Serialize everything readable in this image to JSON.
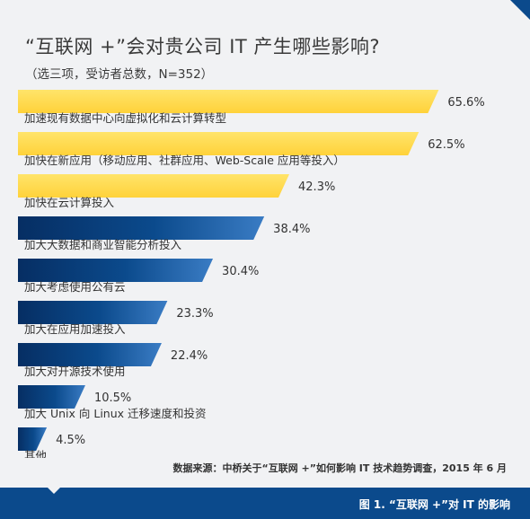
{
  "header": {
    "title": "“互联网 +”会对贵公司 IT 产生哪些影响?",
    "subtitle": "（选三项，受访者总数，N=352）"
  },
  "footer": {
    "source": "数据来源：中桥关于“互联网 +”如何影响 IT 技术趋势调查，2015 年 6 月",
    "caption": "图 1. “互联网 +”对 IT 的影响"
  },
  "colors": {
    "highlight": "#ffd23a",
    "base": "#0b4a8c",
    "background": "#f1f2f4"
  },
  "chart_data": {
    "type": "bar",
    "orientation": "horizontal",
    "title": "“互联网 +”会对贵公司 IT 产生哪些影响?",
    "subtitle": "（选三项，受访者总数，N=352）",
    "unit": "%",
    "categories": [
      "加速现有数据中心向虚拟化和云计算转型",
      "加快在新应用（移动应用、社群应用、Web-Scale 应用等投入）",
      "加快在云计算投入",
      "加大大数据和商业智能分析投入",
      "加大考虑使用公有云",
      "加大在应用加速投入",
      "加大对开源技术使用",
      "加大 Unix 向 Linux 迁移速度和投资",
      "其他"
    ],
    "values": [
      65.6,
      62.5,
      42.3,
      38.4,
      30.4,
      23.3,
      22.4,
      10.5,
      4.5
    ],
    "value_labels": [
      "65.6%",
      "62.5%",
      "42.3%",
      "38.4%",
      "30.4%",
      "23.3%",
      "22.4%",
      "10.5%",
      "4.5%"
    ],
    "highlighted_count": 3,
    "xlim": [
      0,
      66
    ],
    "grid": false,
    "legend": "none"
  }
}
